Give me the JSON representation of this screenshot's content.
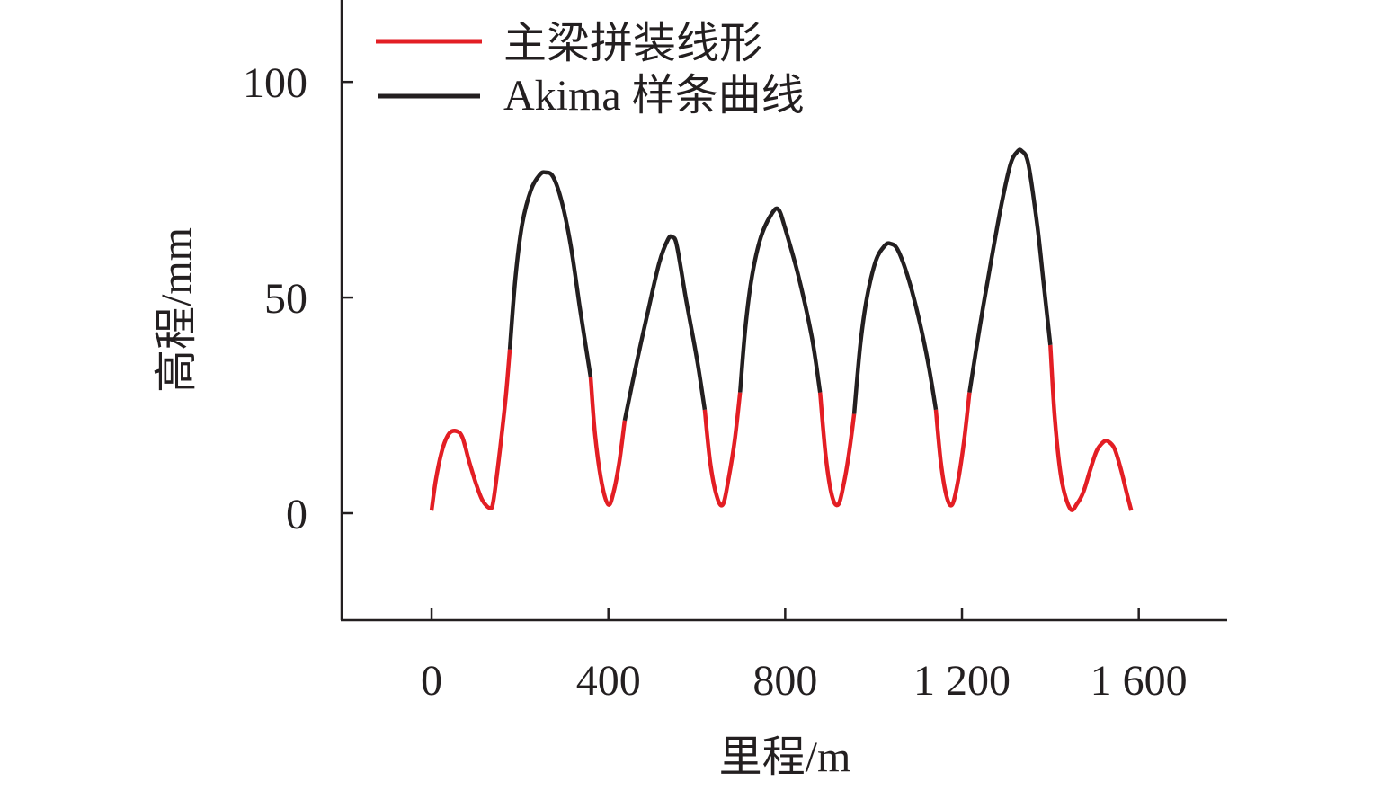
{
  "chart_data": {
    "type": "line",
    "title": "",
    "xlabel": "里程/m",
    "ylabel": "高程/mm",
    "xlim": [
      -203.5,
      1800
    ],
    "ylim": [
      -24.8,
      119
    ],
    "xticks": [
      0,
      400,
      800,
      1200,
      1600
    ],
    "xtick_labels": [
      "0",
      "400",
      "800",
      "1 200",
      "1 600"
    ],
    "yticks": [
      0,
      50,
      100
    ],
    "ytick_labels": [
      "0",
      "50",
      "100"
    ],
    "grid": false,
    "legend_position": "top-left",
    "colors": {
      "main_girder": "#e31e24",
      "akima": "#231f20"
    },
    "series": [
      {
        "name": "主梁拼装线形",
        "color": "#e31e24",
        "segments": [
          [
            [
              0,
              0.6
            ],
            [
              10,
              8
            ],
            [
              25,
              15
            ],
            [
              40,
              18.5
            ],
            [
              57,
              19
            ],
            [
              70,
              17.5
            ],
            [
              85,
              12
            ],
            [
              100,
              7
            ],
            [
              115,
              3
            ],
            [
              132,
              1.2
            ],
            [
              140,
              3
            ],
            [
              155,
              15
            ],
            [
              168,
              27
            ],
            [
              177,
              38
            ]
          ],
          [
            [
              360,
              31.5
            ],
            [
              370,
              18
            ],
            [
              385,
              7
            ],
            [
              400,
              2
            ],
            [
              412,
              5
            ],
            [
              425,
              12
            ],
            [
              437,
              21.5
            ]
          ],
          [
            [
              618,
              24
            ],
            [
              630,
              12
            ],
            [
              645,
              4
            ],
            [
              659,
              2
            ],
            [
              672,
              8
            ],
            [
              686,
              17
            ],
            [
              698,
              28
            ]
          ],
          [
            [
              879,
              28
            ],
            [
              892,
              13
            ],
            [
              906,
              4
            ],
            [
              920,
              2
            ],
            [
              933,
              7
            ],
            [
              946,
              15
            ],
            [
              956,
              23
            ]
          ],
          [
            [
              1141,
              24
            ],
            [
              1152,
              12
            ],
            [
              1165,
              4
            ],
            [
              1178,
              2
            ],
            [
              1192,
              8
            ],
            [
              1205,
              17
            ],
            [
              1217,
              28
            ]
          ],
          [
            [
              1400,
              39
            ],
            [
              1410,
              22
            ],
            [
              1425,
              8
            ],
            [
              1445,
              1
            ],
            [
              1461,
              2.3
            ],
            [
              1475,
              5
            ],
            [
              1490,
              10
            ],
            [
              1505,
              14.5
            ],
            [
              1520,
              16.5
            ],
            [
              1530,
              16.7
            ],
            [
              1545,
              15
            ],
            [
              1560,
              10
            ],
            [
              1572,
              5
            ],
            [
              1583,
              0.6
            ]
          ]
        ]
      },
      {
        "name": "Akima 样条曲线",
        "color": "#231f20",
        "segments": [
          [
            [
              177,
              38
            ],
            [
              190,
              55
            ],
            [
              205,
              67
            ],
            [
              225,
              75
            ],
            [
              245,
              78.5
            ],
            [
              258,
              79
            ],
            [
              275,
              78
            ],
            [
              295,
              72
            ],
            [
              315,
              62
            ],
            [
              335,
              48
            ],
            [
              350,
              38
            ],
            [
              360,
              31.5
            ]
          ],
          [
            [
              437,
              21.5
            ],
            [
              460,
              33
            ],
            [
              490,
              47
            ],
            [
              515,
              58
            ],
            [
              535,
              63.5
            ],
            [
              545,
              64
            ],
            [
              555,
              62
            ],
            [
              575,
              50
            ],
            [
              600,
              36
            ],
            [
              618,
              24
            ]
          ],
          [
            [
              698,
              28
            ],
            [
              710,
              43
            ],
            [
              725,
              55
            ],
            [
              745,
              64
            ],
            [
              770,
              69.5
            ],
            [
              785,
              70.4
            ],
            [
              800,
              66
            ],
            [
              830,
              55
            ],
            [
              860,
              41
            ],
            [
              879,
              28
            ]
          ],
          [
            [
              956,
              23
            ],
            [
              970,
              39
            ],
            [
              985,
              50
            ],
            [
              1005,
              58.5
            ],
            [
              1025,
              62
            ],
            [
              1038,
              62.5
            ],
            [
              1055,
              61
            ],
            [
              1080,
              54
            ],
            [
              1105,
              44
            ],
            [
              1125,
              34
            ],
            [
              1141,
              24
            ]
          ],
          [
            [
              1217,
              28
            ],
            [
              1240,
              43
            ],
            [
              1265,
              58
            ],
            [
              1290,
              72
            ],
            [
              1310,
              81
            ],
            [
              1325,
              83.8
            ],
            [
              1335,
              84
            ],
            [
              1350,
              81
            ],
            [
              1370,
              67
            ],
            [
              1385,
              53
            ],
            [
              1400,
              39
            ]
          ]
        ]
      }
    ]
  }
}
